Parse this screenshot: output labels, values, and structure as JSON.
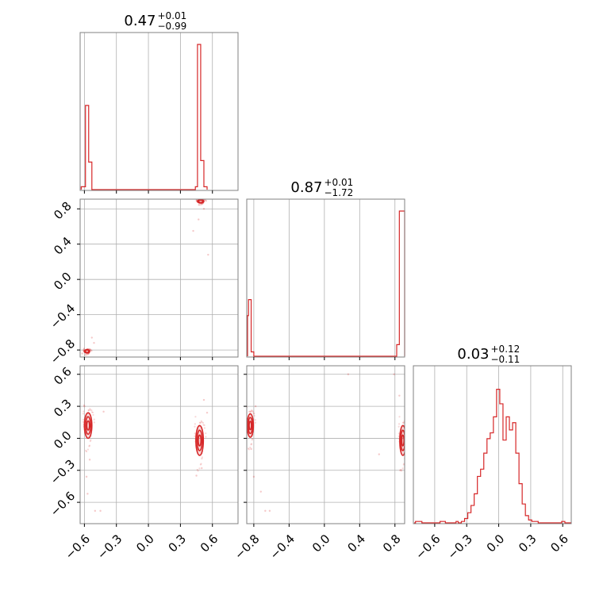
{
  "colors": {
    "series": "#d62728",
    "grid": "#b0b0b0",
    "frame": "#808080"
  },
  "chart_data": {
    "type": "corner",
    "grid": true,
    "parameters": 3,
    "titles": [
      {
        "value": "0.47",
        "plus": "+0.01",
        "minus": "−0.99"
      },
      {
        "value": "0.87",
        "plus": "+0.01",
        "minus": "−1.72"
      },
      {
        "value": "0.03",
        "plus": "+0.12",
        "minus": "−0.11"
      }
    ],
    "axes": [
      {
        "range": [
          -0.64,
          0.84
        ],
        "ticks": [
          -0.6,
          -0.3,
          0.0,
          0.3,
          0.6
        ],
        "tick_labels": [
          "−0.6",
          "−0.3",
          "0.0",
          "0.3",
          "0.6"
        ]
      },
      {
        "range": [
          -0.88,
          0.91
        ],
        "ticks": [
          -0.8,
          -0.4,
          0.0,
          0.4,
          0.8
        ],
        "tick_labels": [
          "−0.8",
          "−0.4",
          "0.0",
          "0.4",
          "0.8"
        ]
      },
      {
        "range": [
          -0.8,
          0.68
        ],
        "ticks": [
          -0.6,
          -0.3,
          0.0,
          0.3,
          0.6
        ],
        "tick_labels": [
          "−0.6",
          "−0.3",
          "0.0",
          "0.3",
          "0.6"
        ]
      }
    ],
    "histograms": [
      {
        "param": 0,
        "type": "step",
        "bins": [
          {
            "x0": -0.63,
            "x1": -0.59,
            "h": 0.02
          },
          {
            "x0": -0.59,
            "x1": -0.56,
            "h": 0.58
          },
          {
            "x0": -0.56,
            "x1": -0.53,
            "h": 0.19
          },
          {
            "x0": -0.53,
            "x1": 0.44,
            "h": 0.0
          },
          {
            "x0": 0.44,
            "x1": 0.46,
            "h": 0.02
          },
          {
            "x0": 0.46,
            "x1": 0.49,
            "h": 1.0
          },
          {
            "x0": 0.49,
            "x1": 0.52,
            "h": 0.2
          },
          {
            "x0": 0.52,
            "x1": 0.55,
            "h": 0.02
          }
        ]
      },
      {
        "param": 1,
        "type": "step",
        "bins": [
          {
            "x0": -0.88,
            "x1": -0.86,
            "h": 0.28
          },
          {
            "x0": -0.86,
            "x1": -0.83,
            "h": 0.39
          },
          {
            "x0": -0.83,
            "x1": -0.8,
            "h": 0.03
          },
          {
            "x0": -0.8,
            "x1": 0.82,
            "h": 0.0
          },
          {
            "x0": 0.82,
            "x1": 0.85,
            "h": 0.08
          },
          {
            "x0": 0.85,
            "x1": 0.91,
            "h": 1.0
          }
        ]
      },
      {
        "param": 2,
        "type": "step",
        "bins": [
          {
            "x0": -0.8,
            "x1": -0.78,
            "h": 0.0
          },
          {
            "x0": -0.78,
            "x1": -0.72,
            "h": 0.01
          },
          {
            "x0": -0.72,
            "x1": -0.55,
            "h": 0.0
          },
          {
            "x0": -0.55,
            "x1": -0.5,
            "h": 0.01
          },
          {
            "x0": -0.5,
            "x1": -0.4,
            "h": 0.0
          },
          {
            "x0": -0.4,
            "x1": -0.38,
            "h": 0.01
          },
          {
            "x0": -0.38,
            "x1": -0.35,
            "h": 0.0
          },
          {
            "x0": -0.35,
            "x1": -0.32,
            "h": 0.01
          },
          {
            "x0": -0.32,
            "x1": -0.29,
            "h": 0.03
          },
          {
            "x0": -0.29,
            "x1": -0.26,
            "h": 0.07
          },
          {
            "x0": -0.26,
            "x1": -0.23,
            "h": 0.12
          },
          {
            "x0": -0.23,
            "x1": -0.2,
            "h": 0.2
          },
          {
            "x0": -0.2,
            "x1": -0.17,
            "h": 0.32
          },
          {
            "x0": -0.17,
            "x1": -0.14,
            "h": 0.37
          },
          {
            "x0": -0.14,
            "x1": -0.11,
            "h": 0.48
          },
          {
            "x0": -0.11,
            "x1": -0.08,
            "h": 0.58
          },
          {
            "x0": -0.08,
            "x1": -0.05,
            "h": 0.62
          },
          {
            "x0": -0.05,
            "x1": -0.02,
            "h": 0.73
          },
          {
            "x0": -0.02,
            "x1": 0.01,
            "h": 0.92
          },
          {
            "x0": 0.01,
            "x1": 0.04,
            "h": 0.82
          },
          {
            "x0": 0.04,
            "x1": 0.07,
            "h": 0.57
          },
          {
            "x0": 0.07,
            "x1": 0.1,
            "h": 0.73
          },
          {
            "x0": 0.1,
            "x1": 0.13,
            "h": 0.64
          },
          {
            "x0": 0.13,
            "x1": 0.16,
            "h": 0.69
          },
          {
            "x0": 0.16,
            "x1": 0.19,
            "h": 0.48
          },
          {
            "x0": 0.19,
            "x1": 0.22,
            "h": 0.27
          },
          {
            "x0": 0.22,
            "x1": 0.25,
            "h": 0.13
          },
          {
            "x0": 0.25,
            "x1": 0.28,
            "h": 0.05
          },
          {
            "x0": 0.28,
            "x1": 0.31,
            "h": 0.02
          },
          {
            "x0": 0.31,
            "x1": 0.37,
            "h": 0.01
          },
          {
            "x0": 0.37,
            "x1": 0.59,
            "h": 0.0
          },
          {
            "x0": 0.59,
            "x1": 0.62,
            "h": 0.01
          },
          {
            "x0": 0.62,
            "x1": 0.68,
            "h": 0.0
          }
        ]
      }
    ],
    "panels_2d": [
      {
        "x_param": 0,
        "y_param": 1,
        "clusters": [
          {
            "cx": -0.575,
            "cy": -0.815,
            "rx": 0.025,
            "ry": 0.02,
            "levels": 2
          },
          {
            "cx": 0.49,
            "cy": 0.885,
            "rx": 0.03,
            "ry": 0.02,
            "levels": 2
          }
        ],
        "points": [
          [
            -0.51,
            -0.72
          ],
          [
            -0.53,
            -0.66
          ],
          [
            -0.62,
            -0.84
          ],
          [
            0.42,
            0.55
          ],
          [
            0.56,
            0.28
          ],
          [
            0.47,
            0.68
          ],
          [
            0.52,
            0.8
          ]
        ]
      },
      {
        "x_param": 0,
        "y_param": 2,
        "clusters": [
          {
            "cx": -0.565,
            "cy": 0.12,
            "rx": 0.035,
            "ry": 0.12,
            "levels": 3
          },
          {
            "cx": 0.48,
            "cy": -0.02,
            "rx": 0.035,
            "ry": 0.14,
            "levels": 3
          }
        ],
        "points": [
          [
            -0.5,
            -0.68
          ],
          [
            -0.45,
            -0.68
          ],
          [
            -0.57,
            -0.52
          ],
          [
            -0.58,
            -0.36
          ],
          [
            -0.42,
            0.25
          ],
          [
            -0.6,
            0.3
          ],
          [
            -0.55,
            -0.2
          ],
          [
            0.52,
            0.36
          ],
          [
            0.45,
            -0.35
          ],
          [
            0.5,
            -0.28
          ],
          [
            0.55,
            0.24
          ]
        ]
      },
      {
        "x_param": 1,
        "y_param": 2,
        "clusters": [
          {
            "cx": -0.84,
            "cy": 0.12,
            "rx": 0.035,
            "ry": 0.11,
            "levels": 3
          },
          {
            "cx": 0.89,
            "cy": -0.02,
            "rx": 0.035,
            "ry": 0.14,
            "levels": 3
          }
        ],
        "points": [
          [
            -0.72,
            -0.5
          ],
          [
            -0.67,
            -0.68
          ],
          [
            -0.62,
            -0.68
          ],
          [
            -0.8,
            -0.36
          ],
          [
            -0.78,
            0.3
          ],
          [
            -0.85,
            0.25
          ],
          [
            -0.83,
            -0.1
          ],
          [
            0.27,
            0.6
          ],
          [
            0.62,
            -0.15
          ],
          [
            0.79,
            0.6
          ],
          [
            0.85,
            0.4
          ],
          [
            0.86,
            -0.3
          ]
        ]
      }
    ]
  }
}
